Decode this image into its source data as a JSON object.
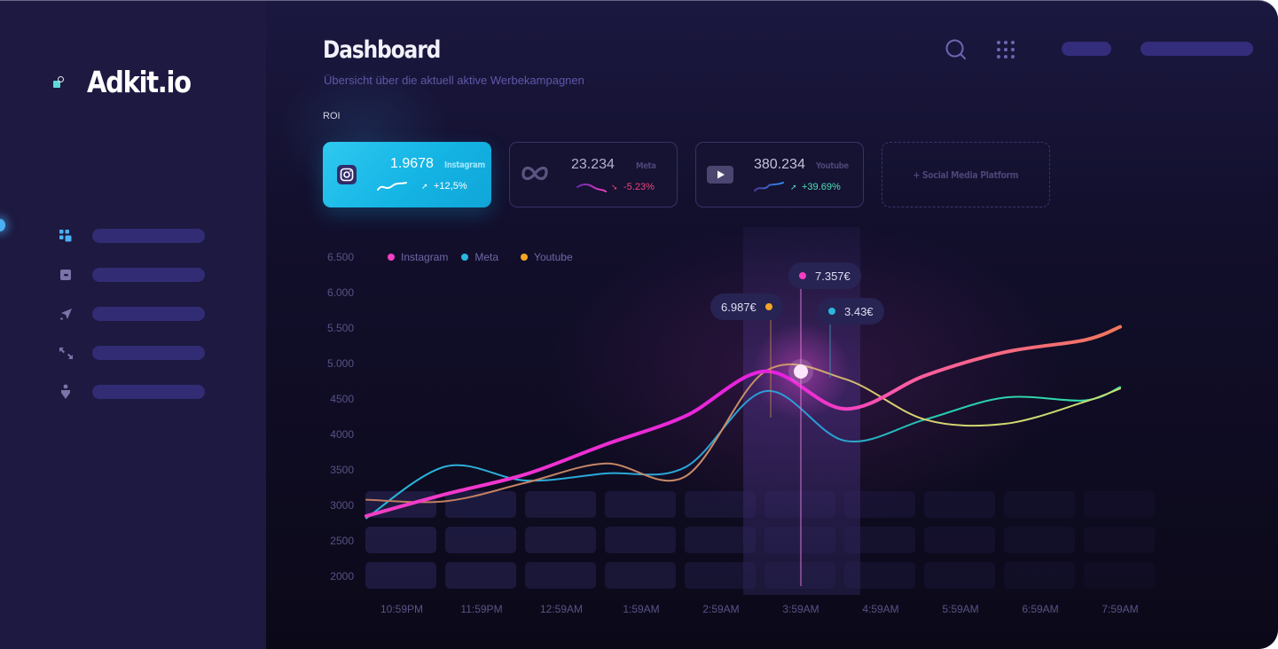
{
  "app": {
    "name": "Adkit.io"
  },
  "sidebar": {
    "active_index": 0,
    "items": [
      {
        "icon": "dashboard-grid-icon",
        "label": ""
      },
      {
        "icon": "wallet-icon",
        "label": ""
      },
      {
        "icon": "send-plane-icon",
        "label": ""
      },
      {
        "icon": "collapse-arrows-icon",
        "label": ""
      },
      {
        "icon": "person-pin-icon",
        "label": ""
      }
    ]
  },
  "header": {
    "title": "Dashboard",
    "subtitle": "Übersicht über die aktuell aktive Werbekampagnen",
    "icons": [
      "search-icon",
      "apps-grid-icon"
    ]
  },
  "roi": {
    "label": "ROI",
    "cards": [
      {
        "platform": "Instagram",
        "value": "1.9678",
        "change": "+12,5%",
        "trend": "up",
        "icon": "instagram-icon",
        "active": true
      },
      {
        "platform": "Meta",
        "value": "23.234",
        "change": "-5.23%",
        "trend": "down",
        "icon": "meta-icon",
        "active": false
      },
      {
        "platform": "Youtube",
        "value": "380.234",
        "change": "+39.69%",
        "trend": "up",
        "icon": "youtube-icon",
        "active": false
      }
    ],
    "add_label": "+ Social Media Platform"
  },
  "colors": {
    "instagram": "#f43fc4",
    "meta": "#2bb6dc",
    "youtube": "#f5a524",
    "positive": "#4fe0b6",
    "negative": "#f0447a",
    "accent": "#14b4e4",
    "pill": "#332d7c"
  },
  "chart_data": {
    "type": "line",
    "title": "ROI",
    "xlabel": "",
    "ylabel": "",
    "ylim": [
      2000,
      6500
    ],
    "y_ticks": [
      "6.500",
      "6.000",
      "5.500",
      "5.000",
      "4500",
      "4000",
      "3500",
      "3000",
      "2500",
      "2000"
    ],
    "grid": false,
    "legend_position": "top-left",
    "categories": [
      "10:59PM",
      "11:59PM",
      "12:59AM",
      "1:59AM",
      "2:59AM",
      "3:59AM",
      "4:59AM",
      "5:59AM",
      "6:59AM",
      "7:59AM"
    ],
    "series": [
      {
        "name": "Instagram",
        "color": "#f43fc4",
        "values": [
          2850,
          3160,
          3440,
          3860,
          4260,
          4890,
          4360,
          4830,
          5160,
          5330
        ]
      },
      {
        "name": "Meta",
        "color": "#2bb6dc",
        "values": [
          2820,
          3550,
          3350,
          3450,
          3540,
          4610,
          3910,
          4210,
          4520,
          4480
        ]
      },
      {
        "name": "Youtube",
        "color": "#f5a524",
        "values": [
          3080,
          3060,
          3320,
          3590,
          3410,
          4890,
          4780,
          4210,
          4150,
          4460
        ]
      }
    ],
    "highlight": {
      "category": "3:59AM",
      "tooltips": [
        {
          "series": "Youtube",
          "label": "6.987€"
        },
        {
          "series": "Instagram",
          "label": "7.357€"
        },
        {
          "series": "Meta",
          "label": "3.43€"
        }
      ]
    }
  }
}
